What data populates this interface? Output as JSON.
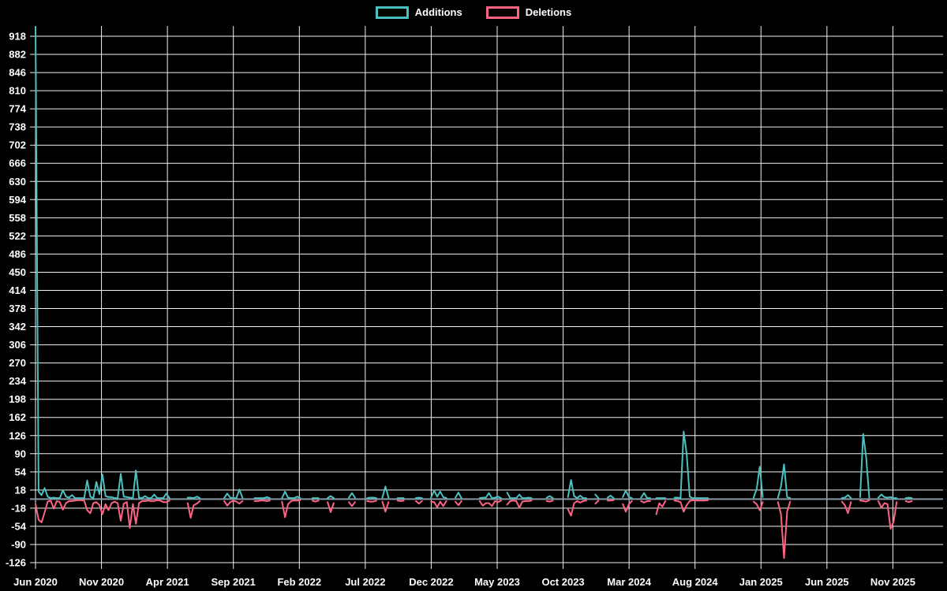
{
  "colors": {
    "background": "#000000",
    "grid": "#f2f2f2",
    "zero_line": "#8899a4",
    "text": "#ffffff",
    "additions": "#4bc0c0",
    "deletions": "#ff6384"
  },
  "chart_data": {
    "type": "line",
    "title": "",
    "xlabel": "",
    "ylabel": "",
    "legend_position": "top",
    "grid": true,
    "x_tick_labels": [
      "Jun 2020",
      "Nov 2020",
      "Apr 2021",
      "Sep 2021",
      "Feb 2022",
      "Jul 2022",
      "Dec 2022",
      "May 2023",
      "Oct 2023",
      "Mar 2024",
      "Aug 2024",
      "Jan 2025",
      "Jun 2025",
      "Nov 2025"
    ],
    "y_ticks": [
      918,
      882,
      846,
      810,
      774,
      738,
      702,
      666,
      630,
      594,
      558,
      522,
      486,
      450,
      414,
      378,
      342,
      306,
      270,
      234,
      198,
      162,
      126,
      90,
      54,
      18,
      -18,
      -54,
      -90,
      -126
    ],
    "y_tick_step": 36,
    "ylim": [
      -140,
      938
    ],
    "x_unit": "week",
    "weeks_total": 298,
    "months_per_x_tick": 5,
    "series": [
      {
        "name": "Additions",
        "color": "#4bc0c0"
      },
      {
        "name": "Deletions",
        "color": "#ff6384"
      }
    ],
    "segments": [
      {
        "start_week": 0,
        "additions": [
          937,
          15,
          8,
          22,
          5,
          2,
          3,
          2,
          2,
          18,
          5,
          3,
          8,
          2,
          2,
          2,
          2,
          37,
          5,
          2,
          34,
          10,
          49,
          6,
          4,
          4,
          2,
          2,
          50,
          5,
          4,
          3,
          2,
          57,
          3,
          2,
          6,
          2,
          2,
          9,
          2,
          2,
          2,
          11,
          2
        ],
        "deletions": [
          -10,
          -41,
          -46,
          -26,
          -5,
          -3,
          -19,
          -4,
          -6,
          -21,
          -8,
          -4,
          -4,
          -3,
          -2,
          -2,
          -3,
          -22,
          -28,
          -8,
          -6,
          -12,
          -30,
          -10,
          -22,
          -8,
          -5,
          -8,
          -43,
          -9,
          -6,
          -57,
          -10,
          -49,
          -8,
          -4,
          -4,
          -3,
          -4,
          -4,
          -2,
          -3,
          -6,
          -6,
          -3
        ]
      },
      {
        "start_week": 50,
        "additions": [
          3,
          3,
          2,
          5,
          2
        ],
        "deletions": [
          -8,
          -37,
          -12,
          -9,
          -4
        ]
      },
      {
        "start_week": 62,
        "additions": [
          2,
          11,
          3,
          2,
          2,
          19,
          3
        ],
        "deletions": [
          -4,
          -13,
          -6,
          -3,
          -5,
          -9,
          -4
        ]
      },
      {
        "start_week": 72,
        "additions": [
          2,
          2,
          2,
          2,
          4,
          2
        ],
        "deletions": [
          -4,
          -4,
          -3,
          -3,
          -4,
          -3
        ]
      },
      {
        "start_week": 81,
        "additions": [
          2,
          15,
          3,
          2,
          2,
          5,
          2
        ],
        "deletions": [
          -5,
          -36,
          -10,
          -4,
          -3,
          -3,
          -2
        ]
      },
      {
        "start_week": 91,
        "additions": [
          2,
          2,
          2
        ],
        "deletions": [
          -3,
          -5,
          -3
        ]
      },
      {
        "start_week": 96,
        "additions": [
          2,
          6,
          2
        ],
        "deletions": [
          -6,
          -26,
          -8
        ]
      },
      {
        "start_week": 103,
        "additions": [
          3,
          12,
          3
        ],
        "deletions": [
          -6,
          -14,
          -6
        ]
      },
      {
        "start_week": 109,
        "additions": [
          2,
          3,
          3,
          2
        ],
        "deletions": [
          -4,
          -5,
          -5,
          -3
        ]
      },
      {
        "start_week": 114,
        "additions": [
          3,
          25,
          3
        ],
        "deletions": [
          -5,
          -25,
          -6
        ]
      },
      {
        "start_week": 119,
        "additions": [
          2,
          2,
          2
        ],
        "deletions": [
          -3,
          -4,
          -3
        ]
      },
      {
        "start_week": 125,
        "additions": [
          2,
          3,
          2
        ],
        "deletions": [
          -4,
          -9,
          -4
        ]
      },
      {
        "start_week": 130,
        "additions": [
          3,
          17,
          5,
          15,
          4,
          2
        ],
        "deletions": [
          -5,
          -6,
          -16,
          -5,
          -14,
          -4
        ]
      },
      {
        "start_week": 138,
        "additions": [
          3,
          13,
          2
        ],
        "deletions": [
          -5,
          -12,
          -4
        ]
      },
      {
        "start_week": 146,
        "additions": [
          2,
          3,
          3,
          12,
          2,
          3,
          5,
          2
        ],
        "deletions": [
          -4,
          -13,
          -8,
          -8,
          -14,
          -4,
          -6,
          -3
        ]
      },
      {
        "start_week": 155,
        "additions": [
          13,
          2,
          2,
          2,
          9,
          2,
          2,
          3,
          2
        ],
        "deletions": [
          -11,
          -4,
          -3,
          -4,
          -17,
          -5,
          -4,
          -4,
          -3
        ]
      },
      {
        "start_week": 168,
        "additions": [
          3,
          6,
          2
        ],
        "deletions": [
          -4,
          -5,
          -3
        ]
      },
      {
        "start_week": 175,
        "additions": [
          4,
          38,
          6,
          2,
          7,
          2,
          2
        ],
        "deletions": [
          -20,
          -33,
          -8,
          -4,
          -7,
          -4,
          -3
        ]
      },
      {
        "start_week": 184,
        "additions": [
          9,
          2
        ],
        "deletions": [
          -9,
          -3
        ]
      },
      {
        "start_week": 188,
        "additions": [
          3,
          7,
          2
        ],
        "deletions": [
          -3,
          -3,
          -2
        ]
      },
      {
        "start_week": 193,
        "additions": [
          4,
          17,
          4,
          2
        ],
        "deletions": [
          -10,
          -25,
          -10,
          -4
        ]
      },
      {
        "start_week": 199,
        "additions": [
          3,
          12,
          2,
          2
        ],
        "deletions": [
          -4,
          -7,
          -4,
          -4
        ]
      },
      {
        "start_week": 204,
        "additions": [
          2,
          2,
          2,
          2
        ],
        "deletions": [
          -30,
          -8,
          -15,
          -4
        ]
      },
      {
        "start_week": 210,
        "additions": [
          3,
          3,
          2,
          134,
          90,
          5,
          2,
          2,
          2,
          2,
          2,
          2
        ],
        "deletions": [
          -3,
          -4,
          -6,
          -25,
          -12,
          -4,
          -2,
          -3,
          -3,
          -3,
          -3,
          -2
        ]
      },
      {
        "start_week": 236,
        "additions": [
          3,
          20,
          64,
          4
        ],
        "deletions": [
          -5,
          -10,
          -22,
          -6
        ]
      },
      {
        "start_week": 244,
        "additions": [
          3,
          25,
          69,
          4,
          2
        ],
        "deletions": [
          -6,
          -30,
          -117,
          -25,
          -5
        ]
      },
      {
        "start_week": 265,
        "additions": [
          2,
          3,
          8,
          2
        ],
        "deletions": [
          -5,
          -12,
          -28,
          -6
        ]
      },
      {
        "start_week": 271,
        "additions": [
          4,
          129,
          82,
          3
        ],
        "deletions": [
          -3,
          -4,
          -5,
          -2
        ]
      },
      {
        "start_week": 277,
        "additions": [
          3,
          9,
          4,
          3,
          4,
          2,
          2
        ],
        "deletions": [
          -4,
          -17,
          -8,
          -10,
          -59,
          -45,
          -6
        ]
      },
      {
        "start_week": 286,
        "additions": [
          2,
          3,
          2
        ],
        "deletions": [
          -4,
          -6,
          -4
        ]
      }
    ]
  }
}
